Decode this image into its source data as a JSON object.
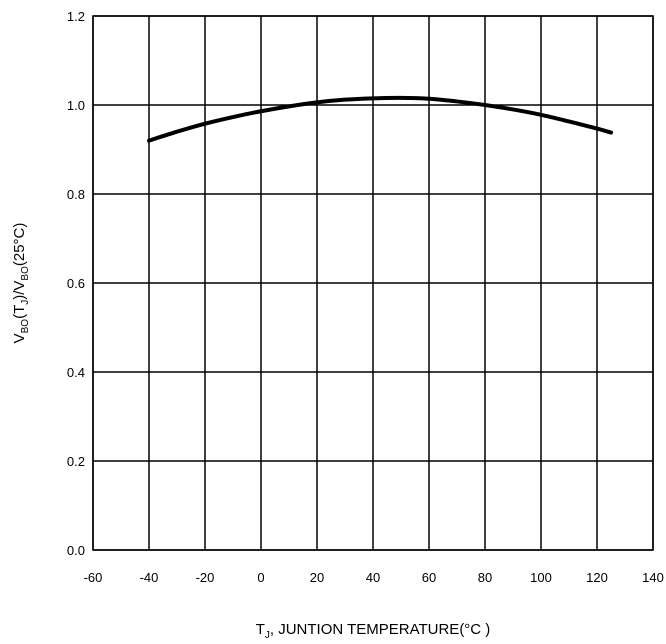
{
  "chart_data": {
    "type": "line",
    "xlabel": {
      "main": "T",
      "sub": "J",
      "rest": ", JUNTION TEMPERATURE(°C )"
    },
    "ylabel": {
      "p1": "V",
      "s1": "BO",
      "p2": "(T",
      "s2": "J",
      "p3": ")/V",
      "s3": "BO",
      "p4": "(25°C)"
    },
    "xlim": [
      -60,
      140
    ],
    "ylim": [
      0,
      1.2
    ],
    "x_ticks": [
      -60,
      -40,
      -20,
      0,
      20,
      40,
      60,
      80,
      100,
      120,
      140
    ],
    "y_ticks": [
      0,
      0.2,
      0.4,
      0.6,
      0.8,
      1.0,
      1.2
    ],
    "x_tick_labels": [
      "-60",
      "-40",
      "-20",
      "0",
      "20",
      "40",
      "60",
      "80",
      "100",
      "120",
      "140"
    ],
    "y_tick_labels": [
      "0.0",
      "0.2",
      "0.4",
      "0.6",
      "0.8",
      "1.0",
      "1.2"
    ],
    "grid": true,
    "series": [
      {
        "x": [
          -40,
          -30,
          -20,
          -10,
          0,
          10,
          20,
          30,
          40,
          50,
          60,
          70,
          80,
          90,
          100,
          110,
          120,
          125
        ],
        "y": [
          0.92,
          0.94,
          0.958,
          0.973,
          0.986,
          0.997,
          1.006,
          1.012,
          1.015,
          1.016,
          1.014,
          1.008,
          1.0,
          0.99,
          0.978,
          0.963,
          0.947,
          0.938
        ]
      }
    ],
    "line_color": "#000000"
  }
}
